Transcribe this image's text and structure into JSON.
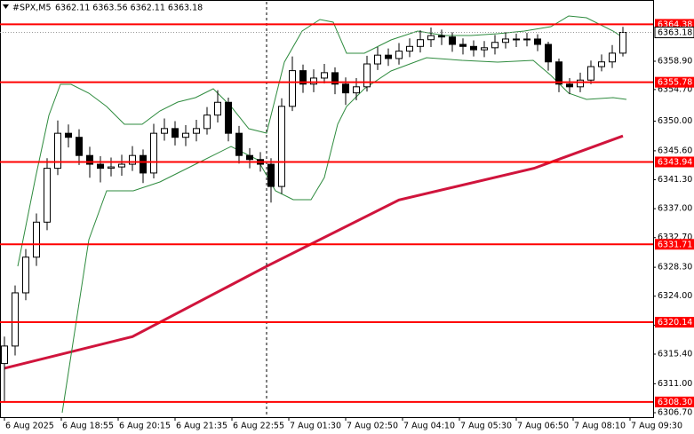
{
  "chart_data": {
    "type": "candlestick",
    "title": "#SPX,M5",
    "subtitle": "6362.11 6363.56 6362.11 6363.18",
    "x": [
      0,
      3,
      6,
      9,
      12,
      15,
      18,
      21,
      24,
      27,
      30,
      33,
      36,
      39,
      42,
      45,
      48,
      51,
      54,
      57,
      60,
      63,
      66,
      69,
      72,
      75,
      78,
      81,
      84,
      87,
      90,
      93,
      96,
      99,
      102,
      105,
      108,
      111,
      114,
      117,
      120,
      123,
      126,
      129,
      132,
      135,
      138,
      141,
      144,
      147,
      150,
      153,
      156,
      159,
      162,
      165,
      168,
      171,
      174
    ],
    "open": [
      6314.0,
      6316.6,
      6324.5,
      6329.8,
      6335.0,
      6343.0,
      6348.2,
      6347.6,
      6344.9,
      6343.6,
      6343.0,
      6343.2,
      6343.6,
      6344.9,
      6342.3,
      6348.2,
      6348.9,
      6347.6,
      6348.2,
      6348.9,
      6350.9,
      6352.8,
      6348.2,
      6344.9,
      6344.3,
      6343.6,
      6340.3,
      6352.2,
      6357.5,
      6355.5,
      6356.4,
      6357.2,
      6355.5,
      6354.2,
      6355.1,
      6358.5,
      6359.8,
      6359.3,
      6360.4,
      6361.1,
      6362.1,
      6362.7,
      6362.5,
      6361.4,
      6361.1,
      6360.6,
      6360.9,
      6361.7,
      6362.2,
      6362.1,
      6362.2,
      6361.4,
      6358.8,
      6355.5,
      6355.1,
      6356.1,
      6358.1,
      6358.8,
      6360.1
    ],
    "high": [
      6318.0,
      6325.6,
      6331.0,
      6336.3,
      6344.5,
      6350.1,
      6349.5,
      6348.8,
      6346.2,
      6344.8,
      6344.6,
      6345.0,
      6346.3,
      6345.8,
      6349.6,
      6350.4,
      6350.0,
      6349.4,
      6350.2,
      6352.1,
      6354.6,
      6353.5,
      6349.3,
      6346.0,
      6345.4,
      6344.5,
      6353.4,
      6359.6,
      6358.4,
      6357.7,
      6358.5,
      6358.0,
      6356.5,
      6356.4,
      6359.7,
      6361.0,
      6360.8,
      6361.6,
      6362.3,
      6363.5,
      6363.9,
      6363.6,
      6363.2,
      6362.3,
      6362.0,
      6361.9,
      6362.8,
      6363.2,
      6363.0,
      6363.1,
      6362.9,
      6361.8,
      6359.3,
      6356.4,
      6357.2,
      6359.0,
      6359.9,
      6361.3,
      6364.0
    ],
    "low": [
      6308.3,
      6315.2,
      6323.4,
      6328.5,
      6333.8,
      6342.0,
      6346.1,
      6343.5,
      6341.6,
      6340.9,
      6341.8,
      6341.9,
      6342.6,
      6340.8,
      6341.5,
      6347.1,
      6346.4,
      6346.3,
      6347.0,
      6348.0,
      6349.8,
      6347.0,
      6343.7,
      6343.0,
      6342.5,
      6337.9,
      6339.2,
      6351.5,
      6354.2,
      6354.3,
      6355.6,
      6354.0,
      6352.4,
      6353.1,
      6354.4,
      6357.6,
      6358.2,
      6358.4,
      6359.5,
      6360.2,
      6361.0,
      6361.3,
      6360.3,
      6359.9,
      6359.6,
      6359.5,
      6359.9,
      6360.8,
      6361.0,
      6361.1,
      6360.4,
      6357.5,
      6354.3,
      6354.0,
      6354.3,
      6355.5,
      6357.4,
      6357.9,
      6359.6
    ],
    "close": [
      6316.6,
      6324.5,
      6329.8,
      6335.0,
      6343.0,
      6348.2,
      6347.6,
      6344.9,
      6343.6,
      6343.0,
      6343.2,
      6343.6,
      6344.9,
      6342.3,
      6348.2,
      6348.9,
      6347.6,
      6348.2,
      6348.9,
      6350.9,
      6352.8,
      6348.2,
      6344.9,
      6344.3,
      6343.6,
      6340.3,
      6352.2,
      6357.5,
      6355.5,
      6356.4,
      6357.2,
      6355.5,
      6354.2,
      6355.1,
      6358.5,
      6359.8,
      6359.3,
      6360.4,
      6361.1,
      6362.1,
      6362.7,
      6362.5,
      6361.4,
      6361.1,
      6360.6,
      6360.9,
      6361.7,
      6362.2,
      6362.1,
      6362.2,
      6361.4,
      6358.8,
      6355.5,
      6355.1,
      6356.1,
      6358.1,
      6358.8,
      6360.1,
      6363.18
    ],
    "xlim": [
      -1.25,
      182.5
    ],
    "ylim": [
      6306.04,
      6367.73
    ],
    "xticks": [
      {
        "value": 0,
        "label": "6 Aug 2025"
      },
      {
        "value": 16,
        "label": "6 Aug 18:55"
      },
      {
        "value": 32,
        "label": "6 Aug 20:15"
      },
      {
        "value": 48,
        "label": "6 Aug 21:35"
      },
      {
        "value": 64,
        "label": "6 Aug 22:55"
      },
      {
        "value": 80,
        "label": "7 Aug 01:30"
      },
      {
        "value": 96,
        "label": "7 Aug 02:50"
      },
      {
        "value": 112,
        "label": "7 Aug 04:10"
      },
      {
        "value": 128,
        "label": "7 Aug 05:30"
      },
      {
        "value": 144,
        "label": "7 Aug 06:50"
      },
      {
        "value": 160,
        "label": "7 Aug 08:10"
      },
      {
        "value": 176,
        "label": "7 Aug 09:30"
      }
    ],
    "yticks": [
      {
        "value": 6358.9,
        "label": "6358.90"
      },
      {
        "value": 6354.7,
        "label": "6354.70"
      },
      {
        "value": 6350,
        "label": "6350.00"
      },
      {
        "value": 6345.6,
        "label": "6345.60"
      },
      {
        "value": 6341.3,
        "label": "6341.30"
      },
      {
        "value": 6337,
        "label": "6337.00"
      },
      {
        "value": 6332.7,
        "label": "6332.70"
      },
      {
        "value": 6328.3,
        "label": "6328.30"
      },
      {
        "value": 6324,
        "label": "6324.00"
      },
      {
        "value": 6319.7,
        "label": "6319.70"
      },
      {
        "value": 6315.4,
        "label": "6315.40"
      },
      {
        "value": 6311,
        "label": "6311.00"
      },
      {
        "value": 6306.7,
        "label": "6306.70"
      }
    ],
    "levels": [
      6364.38,
      6355.78,
      6343.94,
      6331.71,
      6320.14,
      {
        "value": 6308.3,
        "label": "6308.30"
      }
    ],
    "level_color": "#ff0000",
    "overlays": [
      {
        "color": "#d0143c",
        "width": 3,
        "x": [
          0,
          36,
          74,
          111,
          149,
          174
        ],
        "values": [
          6313.3,
          6318.0,
          6328.5,
          6338.3,
          6343.0,
          6347.8
        ]
      },
      {
        "color": "#2e8b3e",
        "width": 1,
        "x": [
          3.75,
          8.75,
          12.5,
          15.75,
          18.75,
          23.75,
          28.75,
          33.75,
          38.75,
          43.75,
          48.75,
          53.75,
          58.75,
          63.75,
          68.75,
          73.75,
          78.75,
          83.75,
          88.75,
          92.5,
          96.25,
          101.25,
          108.75,
          116.25,
          123.75,
          131.25,
          138.75,
          146.25,
          153.75,
          158.75,
          163.75,
          171.25,
          175
        ],
        "values": [
          6328.45,
          6341.63,
          6350.86,
          6355.47,
          6355.47,
          6354.15,
          6352.18,
          6349.54,
          6349.54,
          6351.52,
          6352.84,
          6353.5,
          6354.81,
          6352.18,
          6348.88,
          6348.22,
          6358.77,
          6363.38,
          6365.1,
          6364.7,
          6360.09,
          6360.09,
          6362.06,
          6363.38,
          6362.72,
          6362.72,
          6362.99,
          6363.38,
          6364.04,
          6365.62,
          6365.36,
          6363.38,
          6362.06
        ]
      },
      {
        "color": "#2e8b3e",
        "width": 1,
        "x": [
          16.25,
          18.75,
          23.75,
          28.75,
          36.25,
          43.75,
          53.75,
          63.75,
          71.25,
          76.25,
          81.25,
          86.25,
          90,
          93.75,
          96.25,
          101.25,
          108.75,
          118.75,
          128.75,
          138.75,
          148.75,
          153.75,
          158.75,
          163.75,
          171.25,
          175
        ],
        "values": [
          6306.7,
          6315.27,
          6332.4,
          6339.65,
          6339.65,
          6340.97,
          6343.61,
          6346.25,
          6344.27,
          6339.65,
          6338.34,
          6338.34,
          6341.63,
          6349.54,
          6352.18,
          6354.81,
          6357.45,
          6359.43,
          6359.03,
          6358.77,
          6359.03,
          6356.79,
          6354.15,
          6353.23,
          6353.5,
          6353.23
        ]
      }
    ]
  }
}
